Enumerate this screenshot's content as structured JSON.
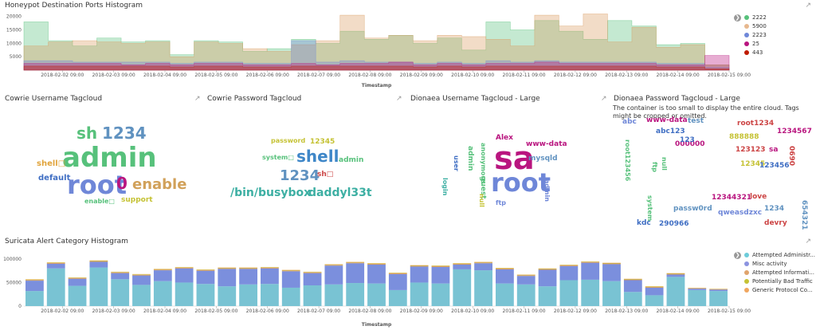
{
  "colors": {
    "green": "#54B399",
    "blue": "#6092C0",
    "orange": "#D6BF57",
    "purple": "#9170B8",
    "red": "#CA8EAE",
    "tan": "#D36086",
    "peach": "#E7664C",
    "teal": "#6DCCB1"
  },
  "panels": {
    "ports": {
      "title": "Honeypot Destination Ports Histogram",
      "xlabel": "Timestamp"
    },
    "cowrie_user": {
      "title": "Cowrie Username Tagcloud"
    },
    "cowrie_pass": {
      "title": "Cowrie Password Tagcloud"
    },
    "dionaea_user": {
      "title": "Dionaea Username Tagcloud - Large"
    },
    "dionaea_pass": {
      "title": "Dionaea Password Tagcloud - Large",
      "message": "The container is too small to display the entire cloud. Tags might be cropped or omitted."
    },
    "suricata": {
      "title": "Suricata Alert Category Histogram",
      "xlabel": "Timestamp"
    }
  },
  "ports_legend": [
    {
      "label": "2222",
      "color": "#57c17b"
    },
    {
      "label": "5900",
      "color": "#e7b88f"
    },
    {
      "label": "2223",
      "color": "#6f87d8"
    },
    {
      "label": "25",
      "color": "#b9157f"
    },
    {
      "label": "443",
      "color": "#bf1b00"
    }
  ],
  "suricata_legend": [
    {
      "label": "Attempted Administr...",
      "color": "#6dccda"
    },
    {
      "label": "Misc activity",
      "color": "#8b93e0"
    },
    {
      "label": "Attempted Informati...",
      "color": "#e0a46d"
    },
    {
      "label": "Potentially Bad Traffic",
      "color": "#c5c234"
    },
    {
      "label": "Generic Protocol Co...",
      "color": "#f0a65f"
    }
  ],
  "cowrie_user_words": [
    {
      "text": "sh",
      "color": "#57c17b"
    },
    {
      "text": "1234",
      "color": "#6092C0"
    },
    {
      "text": "admin",
      "color": "#57c17b"
    },
    {
      "text": "shell□",
      "color": "#e1a43c"
    },
    {
      "text": "default",
      "color": "#3f6ec3"
    },
    {
      "text": "root",
      "color": "#6f87d8"
    },
    {
      "text": "0",
      "color": "#b9157f"
    },
    {
      "text": "enable",
      "color": "#d1a15a"
    },
    {
      "text": "enable□",
      "color": "#57c17b"
    },
    {
      "text": "support",
      "color": "#c5c234"
    }
  ],
  "cowrie_pass_words": [
    {
      "text": "password",
      "color": "#c5c234"
    },
    {
      "text": "12345",
      "color": "#c5c234"
    },
    {
      "text": "system□",
      "color": "#57c17b"
    },
    {
      "text": "shell",
      "color": "#3f87c8"
    },
    {
      "text": "admin",
      "color": "#57c17b"
    },
    {
      "text": "1234",
      "color": "#6092C0"
    },
    {
      "text": "sh□",
      "color": "#c44"
    },
    {
      "text": "/bin/busybox",
      "color": "#3dafa3"
    },
    {
      "text": "daddyl33t",
      "color": "#3dafa3"
    }
  ],
  "dionaea_user_words": [
    {
      "text": "Alex",
      "color": "#b9157f"
    },
    {
      "text": "www-data",
      "color": "#b9157f"
    },
    {
      "text": "sa",
      "color": "#b9157f"
    },
    {
      "text": "mysqld",
      "color": "#6092C0"
    },
    {
      "text": "root",
      "color": "#6f87d8"
    },
    {
      "text": "ftp",
      "color": "#6f87d8"
    },
    {
      "text": "user",
      "color": "#3f6ec3"
    },
    {
      "text": "admin",
      "color": "#57c17b"
    },
    {
      "text": "login",
      "color": "#3dafa3"
    },
    {
      "text": "anonymous",
      "color": "#57c17b"
    },
    {
      "text": "guest",
      "color": "#57c17b"
    },
    {
      "text": "null",
      "color": "#c5c234"
    },
    {
      "text": "admin",
      "color": "#6f87d8"
    }
  ],
  "dionaea_pass_words": [
    {
      "text": "abc",
      "color": "#6f87d8"
    },
    {
      "text": "www-data",
      "color": "#b9157f"
    },
    {
      "text": "test",
      "color": "#6092C0"
    },
    {
      "text": "root1234",
      "color": "#c44"
    },
    {
      "text": "1234567",
      "color": "#b9157f"
    },
    {
      "text": "abc123",
      "color": "#3f6ec3"
    },
    {
      "text": "888888",
      "color": "#c5c234"
    },
    {
      "text": "000000",
      "color": "#b9157f"
    },
    {
      "text": "123123",
      "color": "#c44"
    },
    {
      "text": "sa",
      "color": "#b9157f"
    },
    {
      "text": "123",
      "color": "#3f6ec3"
    },
    {
      "text": "12345",
      "color": "#c5c234"
    },
    {
      "text": "123456",
      "color": "#3f6ec3"
    },
    {
      "text": "12344321",
      "color": "#b9157f"
    },
    {
      "text": "love",
      "color": "#c44"
    },
    {
      "text": "passw0rd",
      "color": "#6092C0"
    },
    {
      "text": "qweasdzxc",
      "color": "#6f87d8"
    },
    {
      "text": "1234",
      "color": "#6092C0"
    },
    {
      "text": "kdc",
      "color": "#3f6ec3"
    },
    {
      "text": "290966",
      "color": "#3f6ec3"
    },
    {
      "text": "devry",
      "color": "#c44"
    },
    {
      "text": "654321",
      "color": "#6092C0"
    },
    {
      "text": "root123456",
      "color": "#57c17b"
    },
    {
      "text": "ftp",
      "color": "#57c17b"
    },
    {
      "text": "null",
      "color": "#57c17b"
    },
    {
      "text": "system",
      "color": "#57c17b"
    },
    {
      "text": "0690",
      "color": "#c44"
    }
  ],
  "chart_data": [
    {
      "type": "area",
      "title": "Honeypot Destination Ports Histogram",
      "xlabel": "Timestamp",
      "ylim": [
        0,
        22000
      ],
      "yticks": [
        5000,
        10000,
        15000,
        20000
      ],
      "xticks": [
        "2018-02-02 09:00",
        "2018-02-03 09:00",
        "2018-02-04 09:00",
        "2018-02-05 09:00",
        "2018-02-06 09:00",
        "2018-02-07 09:00",
        "2018-02-08 09:00",
        "2018-02-09 09:00",
        "2018-02-10 09:00",
        "2018-02-11 09:00",
        "2018-02-12 09:00",
        "2018-02-13 09:00",
        "2018-02-14 09:00",
        "2018-02-15 09:00"
      ],
      "series": [
        {
          "name": "2222",
          "values": [
            18000,
            11000,
            9000,
            12000,
            10500,
            11000,
            5800,
            11000,
            10500,
            7000,
            8000,
            11500,
            10000,
            14500,
            11500,
            13000,
            10000,
            12000,
            7500,
            18000,
            15000,
            18500,
            14500,
            11500,
            18500,
            16500,
            9500,
            10000,
            2000
          ]
        },
        {
          "name": "5900",
          "values": [
            9000,
            10500,
            11000,
            10500,
            10000,
            10500,
            5000,
            10500,
            10000,
            8000,
            7000,
            9500,
            11000,
            20500,
            12000,
            13000,
            11000,
            13000,
            12500,
            11500,
            9000,
            20500,
            16500,
            21000,
            10500,
            16000,
            8500,
            9500,
            2000
          ]
        },
        {
          "name": "2223",
          "values": [
            3500,
            3500,
            3000,
            3000,
            3000,
            3000,
            2500,
            3000,
            3000,
            2500,
            2500,
            11000,
            3000,
            3500,
            3000,
            3000,
            2500,
            3000,
            2500,
            3500,
            3000,
            3500,
            3000,
            3000,
            3000,
            3000,
            2500,
            2500,
            1000
          ]
        },
        {
          "name": "25",
          "values": [
            2500,
            2500,
            2500,
            2500,
            2000,
            2500,
            2000,
            2500,
            2500,
            2000,
            2000,
            2500,
            2000,
            2500,
            2500,
            3000,
            2000,
            2500,
            2000,
            2500,
            2500,
            3000,
            2500,
            2500,
            2500,
            2500,
            2000,
            2000,
            5500
          ]
        },
        {
          "name": "443",
          "values": [
            1500,
            1500,
            1500,
            1500,
            1500,
            1500,
            1200,
            1500,
            1500,
            1200,
            1200,
            1500,
            1500,
            1500,
            1500,
            1500,
            1200,
            1500,
            1200,
            1500,
            1500,
            1500,
            1500,
            1500,
            1500,
            1500,
            1200,
            1200,
            500
          ]
        }
      ]
    },
    {
      "type": "bar",
      "title": "Suricata Alert Category Histogram",
      "xlabel": "Timestamp",
      "ylim": [
        0,
        110000
      ],
      "yticks": [
        0,
        50000,
        100000
      ],
      "xticks": [
        "2018-02-02 09:00",
        "2018-02-03 09:00",
        "2018-02-04 09:00",
        "2018-02-05 09:00",
        "2018-02-06 09:00",
        "2018-02-07 09:00",
        "2018-02-08 09:00",
        "2018-02-09 09:00",
        "2018-02-10 09:00",
        "2018-02-11 09:00",
        "2018-02-12 09:00",
        "2018-02-13 09:00",
        "2018-02-14 09:00",
        "2018-02-15 09:00"
      ],
      "series": [
        {
          "name": "Attempted Administr...",
          "values": [
            32000,
            80000,
            43000,
            82000,
            57000,
            45000,
            53000,
            50000,
            47000,
            42000,
            46000,
            47000,
            39000,
            44000,
            46000,
            49000,
            48000,
            34000,
            50000,
            48000,
            78000,
            76000,
            48000,
            46000,
            42000,
            55000,
            56000,
            53000,
            30000,
            23000,
            62000,
            34000,
            32000
          ]
        },
        {
          "name": "Misc activity",
          "values": [
            22000,
            10000,
            15000,
            12000,
            13000,
            20000,
            23000,
            30000,
            28000,
            37000,
            33000,
            33000,
            35000,
            26000,
            40000,
            42000,
            40000,
            34000,
            34000,
            35000,
            10000,
            15000,
            30000,
            18000,
            35000,
            30000,
            36000,
            36000,
            25000,
            16000,
            5000,
            3000,
            3000
          ]
        },
        {
          "name": "Attempted Informati...",
          "values": [
            1500,
            1500,
            1500,
            1500,
            1500,
            1500,
            1500,
            1500,
            1500,
            1500,
            1500,
            1500,
            1500,
            1500,
            1500,
            1500,
            1500,
            1500,
            1500,
            1500,
            1500,
            1500,
            1500,
            1500,
            1500,
            1500,
            1500,
            1500,
            1500,
            1500,
            1500,
            1000,
            1000
          ]
        },
        {
          "name": "Potentially Bad Traffic",
          "values": [
            1000,
            1000,
            1000,
            1000,
            1000,
            1000,
            1000,
            1000,
            1000,
            1000,
            1000,
            1000,
            1000,
            1000,
            1000,
            1000,
            1000,
            1000,
            1000,
            1000,
            1000,
            1000,
            1000,
            1000,
            1000,
            1000,
            1000,
            1000,
            1000,
            1000,
            1000,
            500,
            500
          ]
        },
        {
          "name": "Generic Protocol Co...",
          "values": [
            500,
            500,
            500,
            500,
            500,
            500,
            500,
            500,
            500,
            500,
            500,
            500,
            500,
            500,
            500,
            500,
            500,
            500,
            500,
            500,
            500,
            500,
            500,
            500,
            500,
            500,
            500,
            500,
            500,
            500,
            500,
            300,
            300
          ]
        }
      ]
    }
  ]
}
